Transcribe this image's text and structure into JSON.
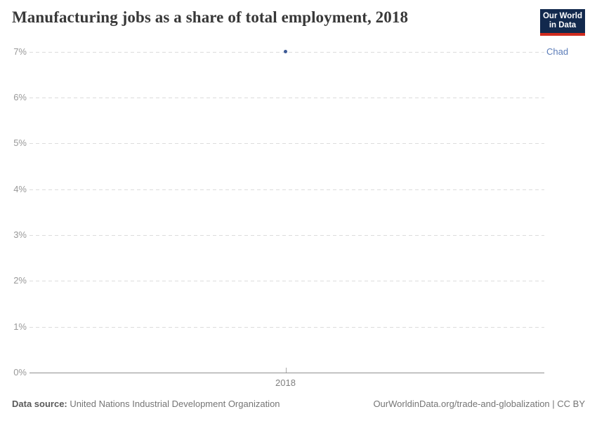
{
  "header": {
    "title": "Manufacturing jobs as a share of total employment, 2018",
    "logo": {
      "line1": "Our World",
      "line2": "in Data",
      "bg_color": "#12294d",
      "accent_color": "#cf2b1f"
    }
  },
  "chart_data": {
    "type": "scatter",
    "title": "Manufacturing jobs as a share of total employment, 2018",
    "series": [
      {
        "name": "Chad",
        "x": 2018,
        "value_percent": 7.0
      }
    ],
    "x_ticks": [
      {
        "value": 2018,
        "label": "2018"
      }
    ],
    "y_ticks": [
      {
        "value": 0,
        "label": "0%"
      },
      {
        "value": 1,
        "label": "1%"
      },
      {
        "value": 2,
        "label": "2%"
      },
      {
        "value": 3,
        "label": "3%"
      },
      {
        "value": 4,
        "label": "4%"
      },
      {
        "value": 5,
        "label": "5%"
      },
      {
        "value": 6,
        "label": "6%"
      },
      {
        "value": 7,
        "label": "7%"
      }
    ],
    "ylim": [
      0,
      7
    ],
    "xlabel": "",
    "ylabel": "",
    "grid": "horizontal-dashed",
    "legend_position": "right-entity-label",
    "point_color": "#3d5a96",
    "entity_label_color": "#5b7cb8"
  },
  "footer": {
    "datasource_label": "Data source:",
    "datasource_value": "United Nations Industrial Development Organization",
    "note_right": "OurWorldinData.org/trade-and-globalization | CC BY"
  }
}
